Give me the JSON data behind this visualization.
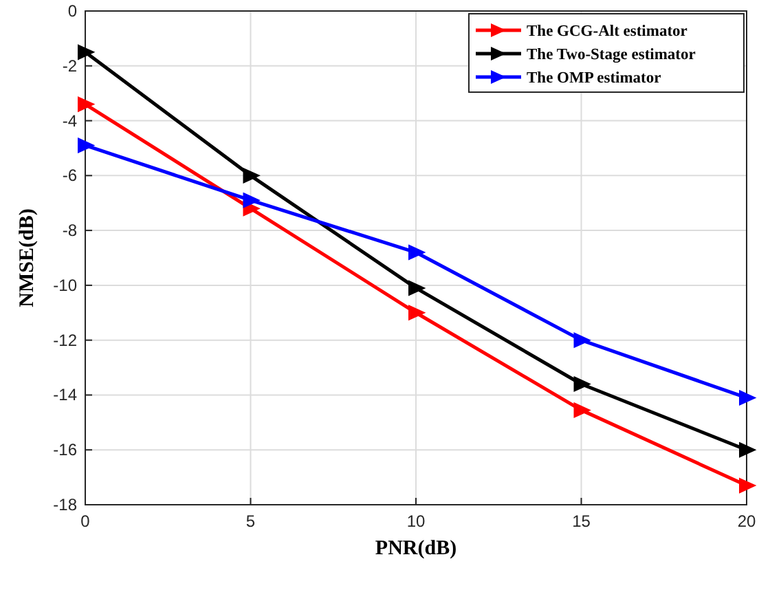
{
  "chart_data": {
    "type": "line",
    "xlabel": "PNR(dB)",
    "ylabel": "NMSE(dB)",
    "x": [
      0,
      5,
      10,
      15,
      20
    ],
    "series": [
      {
        "name": "The GCG-Alt estimator",
        "color": "#ff0000",
        "values": [
          -3.4,
          -7.2,
          -11.0,
          -14.55,
          -17.3
        ]
      },
      {
        "name": "The Two-Stage estimator",
        "color": "#000000",
        "values": [
          -1.5,
          -6.0,
          -10.1,
          -13.6,
          -16.0
        ]
      },
      {
        "name": "The OMP estimator",
        "color": "#0000ff",
        "values": [
          -4.9,
          -6.9,
          -8.8,
          -12.0,
          -14.1
        ]
      }
    ],
    "xlim": [
      0,
      20
    ],
    "xticks": [
      0,
      5,
      10,
      15,
      20
    ],
    "ylim": [
      -18,
      0
    ],
    "yticks": [
      -18,
      -16,
      -14,
      -12,
      -10,
      -8,
      -6,
      -4,
      -2,
      0
    ],
    "grid": true,
    "legend": "top right",
    "marker": "triangle",
    "line_style": "solid"
  }
}
